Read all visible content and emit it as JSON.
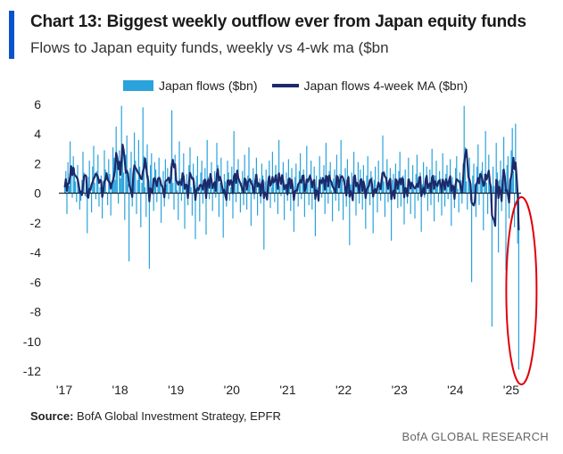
{
  "header": {
    "title": "Chart 13: Biggest weekly outflow ever from Japan equity funds",
    "subtitle": "Flows to Japan equity funds, weekly vs 4-wk ma ($bn"
  },
  "footer": {
    "source_label": "Source:",
    "source_text": " BofA Global Investment Strategy, EPFR",
    "brand": "BofA GLOBAL RESEARCH"
  },
  "colors": {
    "accent": "#0b53c9",
    "bars": "#2aa3dc",
    "line": "#1b2a6b",
    "highlight": "#e0000b"
  },
  "chart_data": {
    "type": "bar",
    "x_tick_labels": [
      "'17",
      "'18",
      "'19",
      "'20",
      "'21",
      "'22",
      "'23",
      "'24",
      "'25"
    ],
    "xlim": [
      "2017-01",
      "2025-08"
    ],
    "ylim": [
      -12,
      6
    ],
    "y_ticks": [
      6,
      4,
      2,
      0,
      -2,
      -4,
      -6,
      -8,
      -10,
      -12
    ],
    "grid": false,
    "legend_position": "top-center",
    "annotation": "red ellipse around the final weeks of 2025",
    "series": [
      {
        "name": "Japan flows ($bn)",
        "type": "bar",
        "start": "2017-01",
        "frequency": "weekly",
        "values": [
          0.4,
          1.5,
          -1.4,
          2.1,
          0.5,
          3.5,
          1.2,
          -0.3,
          2.5,
          1.7,
          0.8,
          -0.6,
          1.9,
          0.2,
          -1.1,
          -0.5,
          0.9,
          2.8,
          1.4,
          -0.2,
          0.6,
          -2.7,
          1.1,
          2.2,
          0.3,
          -1.3,
          1.8,
          3.2,
          0.7,
          -0.4,
          1.5,
          2.6,
          -0.9,
          0.4,
          1.2,
          -1.7,
          0.8,
          2.9,
          1.6,
          0.1,
          -0.8,
          2.3,
          1.3,
          -1.5,
          0.6,
          3.1,
          2.4,
          0.9,
          4.5,
          1.8,
          -0.7,
          2.9,
          1.0,
          5.9,
          3.3,
          1.4,
          -1.8,
          2.6,
          3.9,
          0.6,
          -4.6,
          1.7,
          2.8,
          -0.9,
          1.5,
          4.1,
          2.2,
          -1.4,
          0.9,
          3.6,
          1.8,
          -2.3,
          0.7,
          5.8,
          2.5,
          0.4,
          -1.6,
          3.3,
          1.2,
          -5.1,
          1.9,
          2.7,
          0.5,
          -1.2,
          2.1,
          1.6,
          -0.6,
          0.8,
          2.4,
          1.1,
          -2.0,
          0.3,
          1.5,
          -0.9,
          2.3,
          0.6,
          1.7,
          -0.4,
          0.9,
          1.8,
          5.6,
          0.7,
          -1.1,
          2.6,
          1.3,
          0.2,
          -1.8,
          3.5,
          1.0,
          -0.5,
          1.4,
          2.7,
          -2.4,
          0.6,
          1.3,
          -0.8,
          1.9,
          3.1,
          0.4,
          -1.5,
          2.0,
          0.8,
          -3.1,
          1.2,
          2.5,
          0.3,
          -1.9,
          1.4,
          2.2,
          -0.7,
          0.5,
          1.7,
          -2.8,
          3.6,
          1.1,
          -0.4,
          0.9,
          2.1,
          -1.2,
          0.6,
          1.5,
          -0.3,
          3.4,
          1.9,
          -1.6,
          0.7,
          2.4,
          0.2,
          -3.0,
          1.3,
          0.8,
          -0.9,
          2.2,
          1.4,
          -0.5,
          0.4,
          1.8,
          -1.7,
          4.2,
          0.9,
          -0.6,
          1.6,
          2.3,
          0.1,
          -1.3,
          0.7,
          1.5,
          -0.8,
          2.6,
          0.3,
          -1.1,
          1.2,
          3.1,
          0.6,
          -2.2,
          0.9,
          1.7,
          -0.4,
          1.3,
          2.4,
          -1.5,
          0.5,
          1.0,
          -0.7,
          2.0,
          1.2,
          -3.8,
          0.8,
          1.6,
          -0.3,
          1.1,
          2.2,
          -1.0,
          0.4,
          2.8,
          0.7,
          -0.6,
          1.9,
          1.3,
          -1.4,
          3.6,
          0.5,
          -0.2,
          1.0,
          2.1,
          -1.8,
          0.6,
          1.4,
          -0.5,
          2.3,
          0.8,
          -1.2,
          1.7,
          0.3,
          -2.6,
          1.1,
          2.0,
          0.2,
          -0.9,
          1.5,
          2.7,
          -0.4,
          0.9,
          1.6,
          -1.6,
          0.5,
          3.2,
          1.0,
          -0.8,
          1.3,
          2.2,
          -1.1,
          0.7,
          1.8,
          -2.9,
          1.2,
          0.4,
          -0.6,
          2.5,
          1.1,
          -0.3,
          0.8,
          1.9,
          -1.4,
          3.4,
          0.6,
          -0.7,
          1.5,
          2.1,
          0.2,
          -1.9,
          1.0,
          1.6,
          -0.5,
          2.6,
          0.7,
          -1.2,
          1.3,
          3.6,
          0.9,
          -1.8,
          0.4,
          1.7,
          -0.9,
          2.3,
          1.2,
          -3.5,
          0.6,
          1.4,
          -0.4,
          2.8,
          1.0,
          -1.5,
          0.5,
          2.1,
          -0.7,
          1.6,
          0.8,
          -1.1,
          1.9,
          0.3,
          -2.4,
          1.2,
          2.5,
          0.6,
          -0.8,
          1.5,
          1.1,
          -2.7,
          0.9,
          1.8,
          0.2,
          -1.3,
          2.2,
          0.7,
          -0.5,
          1.4,
          3.9,
          0.8,
          -1.6,
          1.1,
          2.3,
          -0.6,
          0.5,
          1.7,
          -3.2,
          0.9,
          1.3,
          -0.4,
          2.0,
          0.6,
          -1.0,
          1.5,
          2.8,
          -0.9,
          0.7,
          1.2,
          -2.1,
          1.6,
          0.4,
          -0.7,
          2.4,
          1.0,
          -1.4,
          0.8,
          1.9,
          0.3,
          -1.7,
          1.3,
          2.6,
          -0.5,
          0.9,
          1.4,
          -2.6,
          0.6,
          2.1,
          -0.3,
          1.1,
          1.8,
          -1.2,
          0.5,
          1.6,
          -0.8,
          3.0,
          0.9,
          -1.9,
          1.2,
          2.2,
          0.4,
          -0.6,
          1.5,
          1.0,
          -1.5,
          2.7,
          0.7,
          -0.9,
          1.3,
          1.9,
          -0.4,
          0.8,
          2.3,
          -2.2,
          1.1,
          0.6,
          -1.0,
          1.7,
          2.5,
          0.3,
          -1.3,
          1.4,
          0.9,
          -0.7,
          2.0,
          5.9,
          3.1,
          0.8,
          -1.1,
          1.6,
          2.4,
          -0.5,
          -6.0,
          1.2,
          2.0,
          0.6,
          -1.6,
          1.8,
          3.3,
          -0.8,
          0.9,
          1.5,
          2.1,
          -2.5,
          1.3,
          4.2,
          0.7,
          -1.4,
          2.6,
          1.1,
          -0.6,
          -9.0,
          1.8,
          0.5,
          -2.1,
          3.4,
          1.4,
          -4.0,
          0.9,
          2.2,
          -1.2,
          1.6,
          3.8,
          0.3,
          -5.2,
          1.9,
          2.5,
          -1.7,
          0.8,
          2.9,
          4.4,
          1.5,
          -2.3,
          4.7,
          0.6,
          -3.4,
          -11.9
        ]
      },
      {
        "name": "Japan flows 4-week MA ($bn)",
        "type": "line",
        "note": "4-week moving average of Japan flows ($bn)"
      }
    ]
  }
}
